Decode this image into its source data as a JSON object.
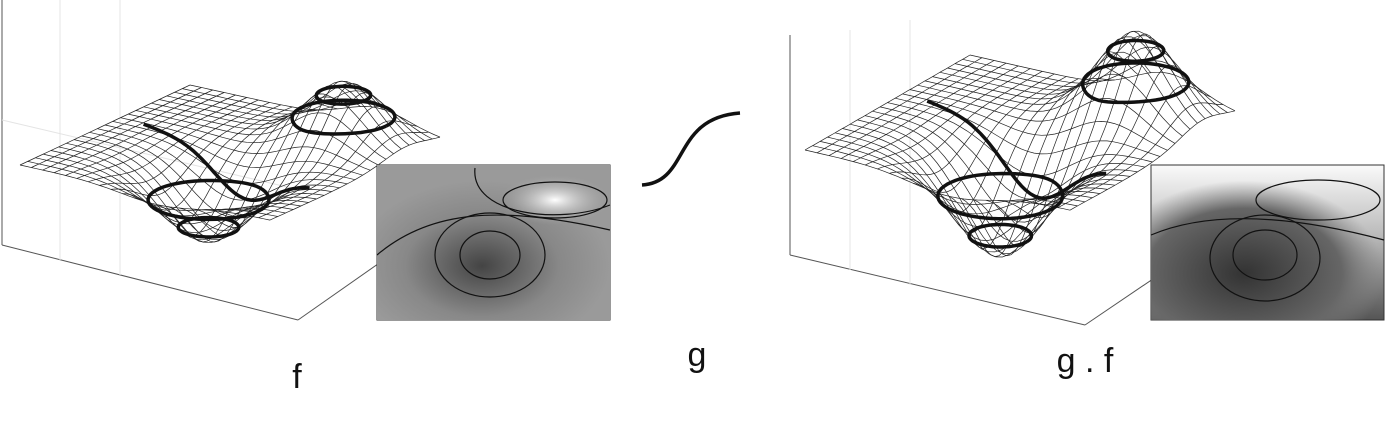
{
  "panels": [
    {
      "label": "f"
    },
    {
      "label": "g"
    },
    {
      "label": "g . f"
    }
  ]
}
